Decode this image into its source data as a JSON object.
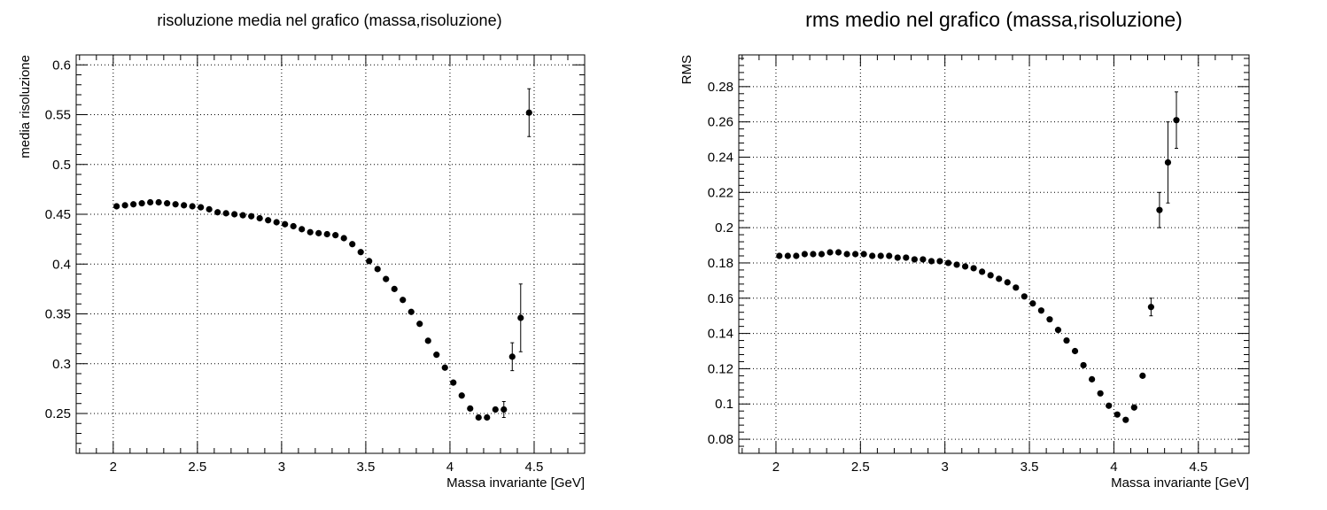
{
  "chart_data": [
    {
      "type": "scatter",
      "title": "risoluzione media nel grafico (massa,risoluzione)",
      "xlabel": "Massa invariante [GeV]",
      "ylabel": "media risoluzione",
      "xlim": [
        1.78,
        4.8
      ],
      "ylim": [
        0.21,
        0.61
      ],
      "grid": true,
      "x_ticks": [
        2,
        2.5,
        3,
        3.5,
        4,
        4.5
      ],
      "x_tick_labels": [
        "2",
        "2.5",
        "3",
        "3.5",
        "4",
        "4.5"
      ],
      "y_ticks": [
        0.25,
        0.3,
        0.35,
        0.4,
        0.45,
        0.5,
        0.55,
        0.6
      ],
      "y_tick_labels": [
        "0.25",
        "0.3",
        "0.35",
        "0.4",
        "0.45",
        "0.5",
        "0.55",
        "0.6"
      ],
      "series": [
        {
          "color": "#000000",
          "x": [
            2.02,
            2.07,
            2.12,
            2.17,
            2.22,
            2.27,
            2.32,
            2.37,
            2.42,
            2.47,
            2.52,
            2.57,
            2.62,
            2.67,
            2.72,
            2.77,
            2.82,
            2.87,
            2.92,
            2.97,
            3.02,
            3.07,
            3.12,
            3.17,
            3.22,
            3.27,
            3.32,
            3.37,
            3.42,
            3.47,
            3.52,
            3.57,
            3.62,
            3.67,
            3.72,
            3.77,
            3.82,
            3.87,
            3.92,
            3.97,
            4.02,
            4.07,
            4.12,
            4.17,
            4.22,
            4.27,
            4.32,
            4.37,
            4.42,
            4.47,
            4.53
          ],
          "y": [
            0.458,
            0.459,
            0.46,
            0.461,
            0.462,
            0.462,
            0.461,
            0.46,
            0.459,
            0.458,
            0.457,
            0.455,
            0.452,
            0.451,
            0.45,
            0.449,
            0.448,
            0.446,
            0.444,
            0.442,
            0.44,
            0.438,
            0.435,
            0.432,
            0.431,
            0.43,
            0.429,
            0.426,
            0.42,
            0.412,
            0.403,
            0.395,
            0.385,
            0.375,
            0.364,
            0.352,
            0.34,
            0.323,
            0.309,
            0.296,
            0.281,
            0.268,
            0.255,
            0.246,
            0.246,
            0.254,
            0.254,
            0.307,
            0.346,
            0.552,
            null
          ],
          "yerr": [
            0,
            0,
            0,
            0,
            0,
            0,
            0,
            0,
            0,
            0,
            0,
            0,
            0,
            0,
            0,
            0,
            0,
            0,
            0,
            0,
            0,
            0,
            0,
            0,
            0,
            0,
            0,
            0,
            0,
            0,
            0,
            0,
            0,
            0,
            0,
            0,
            0,
            0,
            0,
            0,
            0,
            0,
            0,
            0,
            0.002,
            0.002,
            0.008,
            0.014,
            0.034,
            0.024,
            0
          ]
        }
      ]
    },
    {
      "type": "scatter",
      "title": "rms medio nel grafico (massa,risoluzione)",
      "xlabel": "Massa invariante [GeV]",
      "ylabel": "RMS",
      "xlim": [
        1.78,
        4.8
      ],
      "ylim": [
        0.072,
        0.298
      ],
      "grid": true,
      "x_ticks": [
        2,
        2.5,
        3,
        3.5,
        4,
        4.5
      ],
      "x_tick_labels": [
        "2",
        "2.5",
        "3",
        "3.5",
        "4",
        "4.5"
      ],
      "y_ticks": [
        0.08,
        0.1,
        0.12,
        0.14,
        0.16,
        0.18,
        0.2,
        0.22,
        0.24,
        0.26,
        0.28
      ],
      "y_tick_labels": [
        "0.08",
        "0.1",
        "0.12",
        "0.14",
        "0.16",
        "0.18",
        "0.2",
        "0.22",
        "0.24",
        "0.26",
        "0.28"
      ],
      "series": [
        {
          "color": "#000000",
          "x": [
            2.02,
            2.07,
            2.12,
            2.17,
            2.22,
            2.27,
            2.32,
            2.37,
            2.42,
            2.47,
            2.52,
            2.57,
            2.62,
            2.67,
            2.72,
            2.77,
            2.82,
            2.87,
            2.92,
            2.97,
            3.02,
            3.07,
            3.12,
            3.17,
            3.22,
            3.27,
            3.32,
            3.37,
            3.42,
            3.47,
            3.52,
            3.57,
            3.62,
            3.67,
            3.72,
            3.77,
            3.82,
            3.87,
            3.92,
            3.97,
            4.02,
            4.07,
            4.12,
            4.17,
            4.22,
            4.27,
            4.32,
            4.37,
            4.42,
            4.47,
            4.53
          ],
          "y": [
            0.184,
            0.184,
            0.184,
            0.185,
            0.185,
            0.185,
            0.186,
            0.186,
            0.185,
            0.185,
            0.185,
            0.184,
            0.184,
            0.184,
            0.183,
            0.183,
            0.182,
            0.182,
            0.181,
            0.181,
            0.18,
            0.179,
            0.178,
            0.177,
            0.175,
            0.173,
            0.171,
            0.169,
            0.166,
            0.161,
            0.157,
            0.153,
            0.148,
            0.142,
            0.136,
            0.13,
            0.122,
            0.114,
            0.106,
            0.099,
            0.094,
            0.091,
            0.098,
            0.116,
            0.155,
            0.21,
            0.237,
            0.261,
            null,
            null,
            null
          ],
          "yerr": [
            0,
            0,
            0,
            0,
            0,
            0,
            0,
            0,
            0,
            0,
            0,
            0,
            0,
            0,
            0,
            0,
            0,
            0,
            0,
            0,
            0,
            0,
            0,
            0,
            0,
            0,
            0,
            0,
            0,
            0,
            0,
            0,
            0,
            0,
            0,
            0,
            0,
            0,
            0,
            0,
            0,
            0,
            0,
            0,
            0.005,
            0.01,
            0.023,
            0.016,
            0,
            0,
            0
          ]
        }
      ]
    }
  ]
}
